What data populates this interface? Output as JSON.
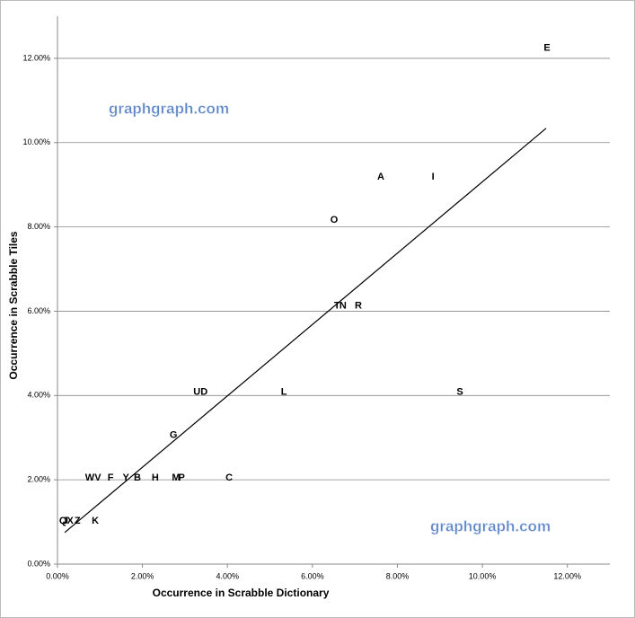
{
  "chart_data": {
    "type": "scatter",
    "xlabel": "Occurrence in Scrabble Dictionary",
    "ylabel": "Occurrence in Scrabble Tiles",
    "point_labels": [
      "E",
      "A",
      "I",
      "O",
      "T",
      "N",
      "R",
      "U",
      "D",
      "L",
      "S",
      "G",
      "W",
      "V",
      "F",
      "Y",
      "B",
      "H",
      "M",
      "P",
      "C",
      "Q",
      "J",
      "X",
      "Z",
      "K"
    ],
    "x": [
      11.52,
      7.61,
      8.84,
      6.51,
      6.58,
      6.72,
      7.08,
      3.28,
      3.45,
      5.33,
      9.47,
      2.73,
      0.76,
      0.95,
      1.25,
      1.61,
      1.88,
      2.3,
      2.79,
      2.92,
      4.04,
      0.13,
      0.19,
      0.3,
      0.47,
      0.89
    ],
    "values": [
      12.24,
      9.18,
      9.18,
      8.16,
      6.12,
      6.12,
      6.12,
      4.08,
      4.08,
      4.08,
      4.08,
      3.06,
      2.04,
      2.04,
      2.04,
      2.04,
      2.04,
      2.04,
      2.04,
      2.04,
      2.04,
      1.02,
      1.02,
      1.02,
      1.02,
      1.02
    ],
    "color": "#000000",
    "trendline": {
      "x": [
        0.17,
        11.5
      ],
      "y": [
        0.75,
        10.34
      ]
    },
    "annotations": [
      "graphgraph.com",
      "graphgraph.com"
    ],
    "xlim": [
      0,
      13
    ],
    "ylim": [
      0,
      13
    ],
    "xticks": [
      {
        "value": 0,
        "label": "0.00%"
      },
      {
        "value": 2,
        "label": "2.00%"
      },
      {
        "value": 4,
        "label": "4.00%"
      },
      {
        "value": 6,
        "label": "6.00%"
      },
      {
        "value": 8,
        "label": "8.00%"
      },
      {
        "value": 10,
        "label": "10.00%"
      },
      {
        "value": 12,
        "label": "12.00%"
      }
    ],
    "yticks": [
      {
        "value": 0,
        "label": "0.00%"
      },
      {
        "value": 2,
        "label": "2.00%"
      },
      {
        "value": 4,
        "label": "4.00%"
      },
      {
        "value": 6,
        "label": "6.00%"
      },
      {
        "value": 8,
        "label": "8.00%"
      },
      {
        "value": 10,
        "label": "10.00%"
      },
      {
        "value": 12,
        "label": "12.00%"
      }
    ],
    "grid": true
  }
}
